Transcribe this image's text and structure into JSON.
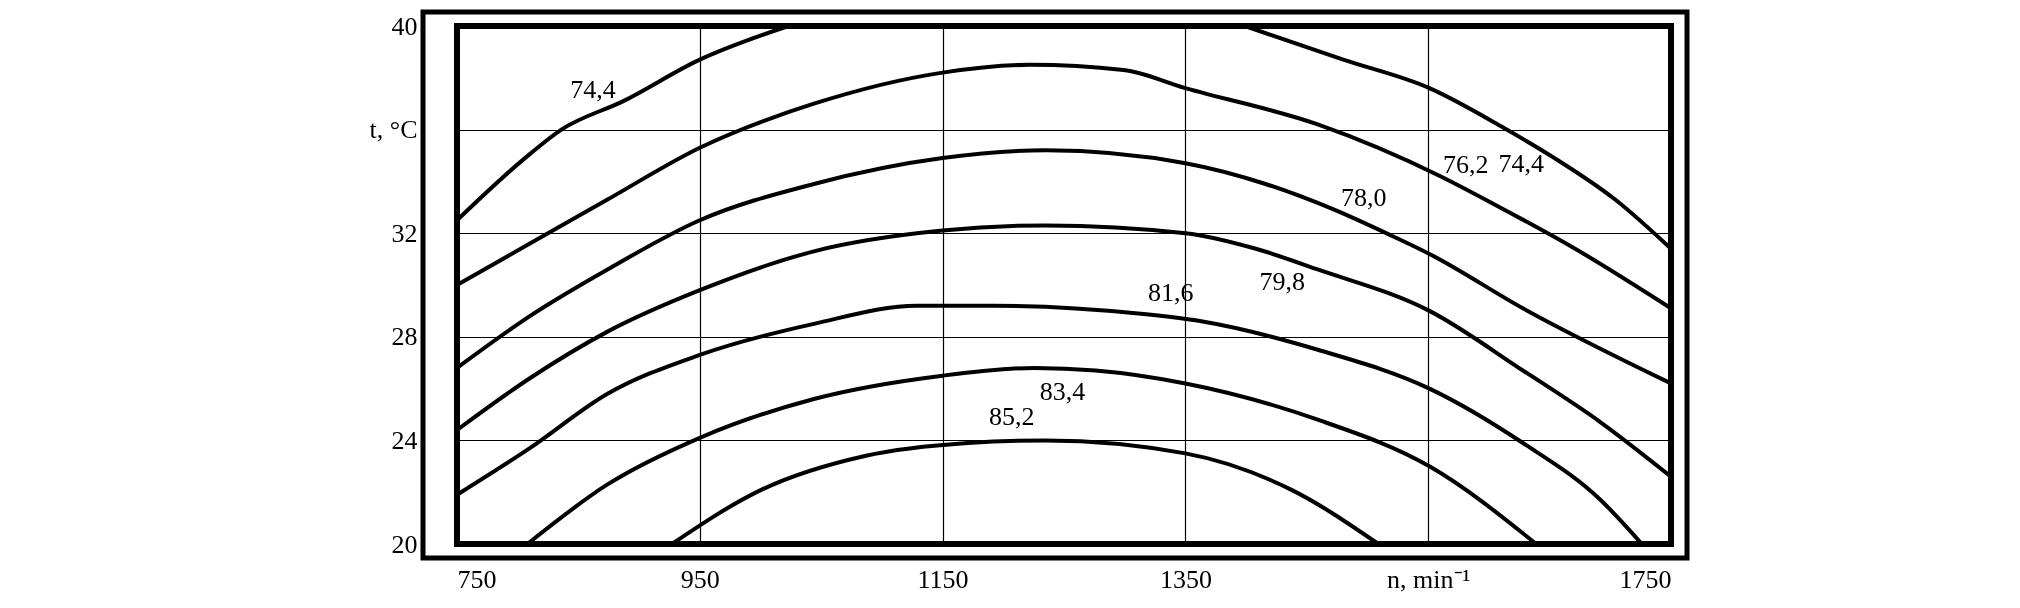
{
  "chart_data": {
    "type": "line",
    "xlabel": "n, min⁻¹",
    "ylabel": "t, °C",
    "xlim": [
      750,
      1750
    ],
    "ylim": [
      20,
      40
    ],
    "xticks": [
      750,
      950,
      1150,
      1350,
      {
        "value": 1550,
        "label": null
      },
      1750
    ],
    "yticks": [
      20,
      24,
      28,
      32,
      {
        "value": 36,
        "label": null
      },
      40
    ],
    "grid": true,
    "legend": false,
    "marker": "none",
    "line_style": "solid",
    "series": [
      {
        "name": "74,4",
        "color": "#000000",
        "x": [
          750,
          806,
          836,
          862,
          887,
          950,
          1023
        ],
        "values": [
          32.5,
          34.9,
          36.0,
          null,
          37.1,
          38.7,
          40
        ]
      },
      {
        "name": "74,4",
        "color": "#000000",
        "x": [
          1399,
          1480,
          1551,
          1611,
          1630,
          1654,
          1704,
          1750
        ],
        "values": [
          40,
          38.7,
          37.6,
          36.1,
          null,
          34.9,
          33.3,
          31.4
        ]
      },
      {
        "name": "76,2",
        "color": "#000000",
        "x": [
          750,
          810,
          874,
          950,
          1044,
          1150,
          1222,
          1299,
          1350,
          1459,
          1560,
          1581,
          1605,
          1671,
          1750
        ],
        "values": [
          30.0,
          31.6,
          33.3,
          35.3,
          37.0,
          38.2,
          38.5,
          38.3,
          37.6,
          36.2,
          34.2,
          null,
          33.1,
          31.4,
          29.1
        ]
      },
      {
        "name": "78,0",
        "color": "#000000",
        "x": [
          750,
          810,
          874,
          950,
          1044,
          1150,
          1235,
          1350,
          1416,
          1473,
          1497,
          1520,
          1551,
          1628,
          1750
        ],
        "values": [
          26.8,
          28.8,
          30.6,
          32.5,
          33.9,
          34.9,
          35.2,
          34.7,
          33.9,
          32.9,
          null,
          31.9,
          31.2,
          29.1,
          26.2
        ]
      },
      {
        "name": "79,8",
        "color": "#000000",
        "x": [
          750,
          810,
          874,
          950,
          1044,
          1150,
          1235,
          1350,
          1408,
          1433,
          1459,
          1551,
          1628,
          1692,
          1750
        ],
        "values": [
          24.4,
          26.4,
          28.2,
          29.8,
          31.3,
          32.1,
          32.3,
          32.0,
          31.4,
          null,
          30.6,
          29.0,
          26.7,
          24.7,
          22.6
        ]
      },
      {
        "name": "81,6",
        "color": "#000000",
        "x": [
          750,
          810,
          874,
          950,
          1044,
          1129,
          1192,
          1311,
          1338,
          1363,
          1459,
          1551,
          1628,
          1692,
          1726
        ],
        "values": [
          21.9,
          23.7,
          25.8,
          27.3,
          28.5,
          29.2,
          29.2,
          28.9,
          null,
          28.6,
          27.5,
          26.0,
          23.9,
          21.7,
          20
        ]
      },
      {
        "name": "83,4",
        "color": "#000000",
        "x": [
          808,
          874,
          950,
          1044,
          1150,
          1226,
          1252,
          1276,
          1350,
          1459,
          1551,
          1639
        ],
        "values": [
          20,
          22.3,
          24.1,
          25.6,
          26.5,
          26.8,
          null,
          26.7,
          26.2,
          24.8,
          23.0,
          20
        ]
      },
      {
        "name": "85,2",
        "color": "#000000",
        "x": [
          927,
          1001,
          1086,
          1171,
          1207,
          1235,
          1350,
          1437,
          1509
        ],
        "values": [
          20,
          22.1,
          23.4,
          23.9,
          null,
          24.0,
          23.5,
          22.1,
          20
        ]
      }
    ]
  }
}
